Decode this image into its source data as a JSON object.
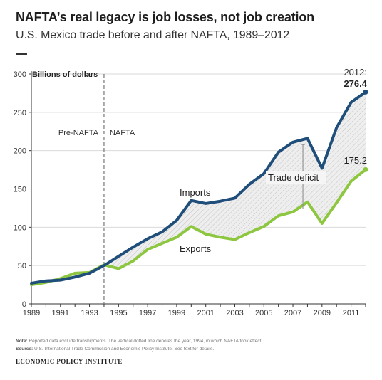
{
  "header": {
    "title": "NAFTA’s real legacy is job losses, not job creation",
    "subtitle": "U.S. Mexico trade before and after NAFTA, 1989–2012"
  },
  "chart_data": {
    "type": "line",
    "title": "NAFTA’s real legacy is job losses, not job creation",
    "subtitle": "U.S. Mexico trade before and after NAFTA, 1989–2012",
    "ylabel": "Billions of dollars",
    "xlabel": "",
    "xlim": [
      1989,
      2012
    ],
    "ylim": [
      0,
      300
    ],
    "yticks": [
      0,
      50,
      100,
      150,
      200,
      250,
      300
    ],
    "xticks": [
      1989,
      1991,
      1993,
      1995,
      1997,
      1999,
      2001,
      2003,
      2005,
      2007,
      2009,
      2011
    ],
    "x": [
      1989,
      1990,
      1991,
      1992,
      1993,
      1994,
      1995,
      1996,
      1997,
      1998,
      1999,
      2000,
      2001,
      2002,
      2003,
      2004,
      2005,
      2006,
      2007,
      2008,
      2009,
      2010,
      2011,
      2012
    ],
    "grid": true,
    "series": [
      {
        "name": "Imports",
        "color": "#1f4e7a",
        "values": [
          27,
          30,
          31,
          35,
          40,
          50,
          62,
          74,
          85,
          94,
          109,
          135,
          131,
          134,
          138,
          156,
          170,
          198,
          211,
          216,
          177,
          230,
          263,
          276.4
        ]
      },
      {
        "name": "Exports",
        "color": "#8dc63f",
        "values": [
          25,
          28,
          33,
          40,
          41,
          51,
          46,
          56,
          71,
          79,
          87,
          101,
          91,
          87,
          84,
          93,
          101,
          115,
          120,
          133,
          105,
          132,
          160,
          175.2
        ]
      }
    ],
    "fill_between": {
      "label": "Trade deficit"
    },
    "vline": {
      "x": 1994,
      "left_label": "Pre-NAFTA",
      "right_label": "NAFTA"
    },
    "annotations": {
      "end_year": "2012:",
      "imports_end": "276.4",
      "exports_end": "175.2"
    },
    "y_zero_label": "0"
  },
  "footer": {
    "note_label": "Note:",
    "note_text": "Reported data exclude transhipments. The vertical dotted line denotes the year, 1994, in which NAFTA took effect.",
    "source_label": "Source:",
    "source_text": "U.S. International Trade Commission and Economic Policy Institute. See text for details.",
    "brand": "ECONOMIC POLICY INSTITUTE"
  }
}
